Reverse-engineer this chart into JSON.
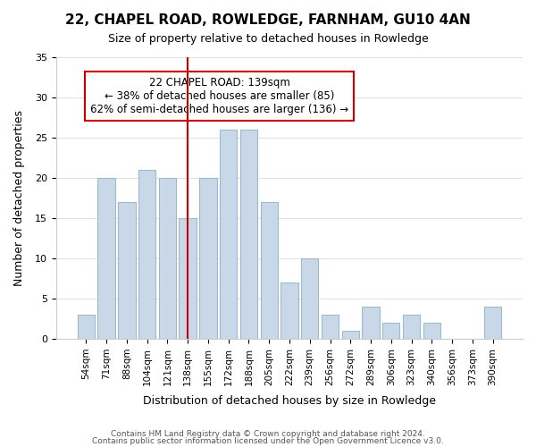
{
  "title": "22, CHAPEL ROAD, ROWLEDGE, FARNHAM, GU10 4AN",
  "subtitle": "Size of property relative to detached houses in Rowledge",
  "xlabel": "Distribution of detached houses by size in Rowledge",
  "ylabel": "Number of detached properties",
  "bar_color": "#c8d8e8",
  "bar_edge_color": "#a0b8cc",
  "categories": [
    "54sqm",
    "71sqm",
    "88sqm",
    "104sqm",
    "121sqm",
    "138sqm",
    "155sqm",
    "172sqm",
    "188sqm",
    "205sqm",
    "222sqm",
    "239sqm",
    "256sqm",
    "272sqm",
    "289sqm",
    "306sqm",
    "323sqm",
    "340sqm",
    "356sqm",
    "373sqm",
    "390sqm"
  ],
  "values": [
    3,
    20,
    17,
    21,
    20,
    15,
    20,
    26,
    26,
    17,
    7,
    10,
    3,
    1,
    4,
    2,
    3,
    2,
    0,
    0,
    4
  ],
  "ylim": [
    0,
    35
  ],
  "yticks": [
    0,
    5,
    10,
    15,
    20,
    25,
    30,
    35
  ],
  "vline_x_index": 5,
  "vline_color": "#cc0000",
  "annotation_title": "22 CHAPEL ROAD: 139sqm",
  "annotation_line1": "← 38% of detached houses are smaller (85)",
  "annotation_line2": "62% of semi-detached houses are larger (136) →",
  "annotation_box_color": "#ffffff",
  "annotation_box_edge": "#cc0000",
  "footer1": "Contains HM Land Registry data © Crown copyright and database right 2024.",
  "footer2": "Contains public sector information licensed under the Open Government Licence v3.0.",
  "background_color": "#ffffff",
  "grid_color": "#e0e0e0"
}
